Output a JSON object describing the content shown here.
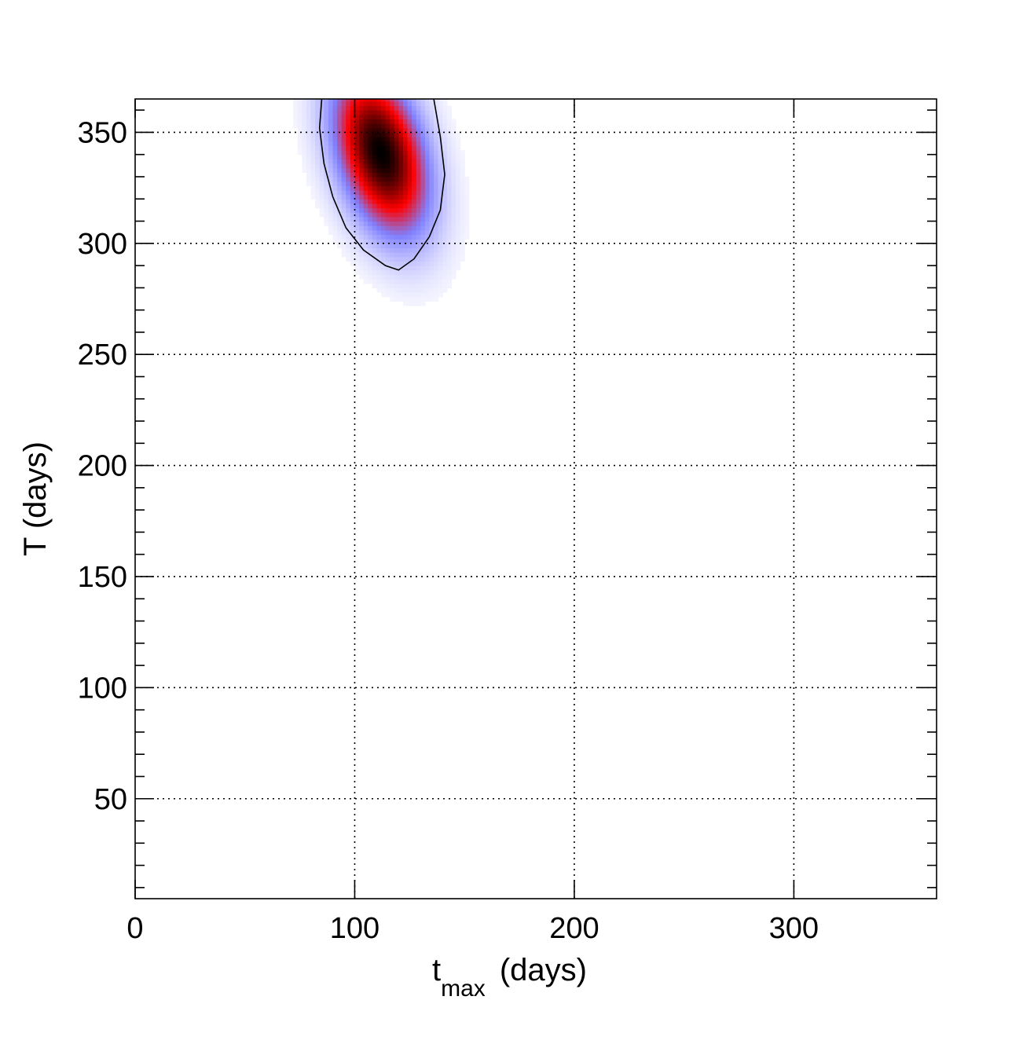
{
  "chart_data": {
    "type": "heatmap",
    "title": "",
    "xlabel_main": "t",
    "xlabel_sub": "max",
    "xlabel_units": "(days)",
    "ylabel": "T (days)",
    "xlim": [
      0,
      365
    ],
    "ylim": [
      5,
      365
    ],
    "x_ticks": [
      0,
      100,
      200,
      300
    ],
    "x_tick_labels": [
      "0",
      "100",
      "200",
      "300"
    ],
    "y_ticks": [
      50,
      100,
      150,
      200,
      250,
      300,
      350
    ],
    "y_tick_labels": [
      "50",
      "100",
      "150",
      "200",
      "250",
      "300",
      "350"
    ],
    "grid": true,
    "peak": {
      "x": 111,
      "y": 340
    },
    "contour": [
      [
        85,
        365
      ],
      [
        84,
        352
      ],
      [
        86,
        336
      ],
      [
        90,
        321
      ],
      [
        96,
        307
      ],
      [
        104,
        297
      ],
      [
        114,
        290
      ],
      [
        120,
        288
      ],
      [
        127,
        293
      ],
      [
        134,
        303
      ],
      [
        139,
        315
      ],
      [
        141,
        331
      ],
      [
        139,
        348
      ],
      [
        136,
        365
      ]
    ],
    "colors": {
      "low": "#ffffff",
      "mid": "#8080ff",
      "high": "#ff0000",
      "peak": "#000000"
    }
  }
}
